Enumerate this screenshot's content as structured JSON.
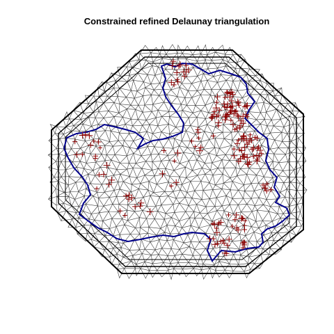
{
  "figure": {
    "title": "Constrained refined Delaunay triangulation"
  },
  "colors": {
    "background": "#ffffff",
    "mesh_edge": "#3c3c3c",
    "outer_boundary": "#000000",
    "inner_boundary": "#00008b",
    "data_points": "#8b0000"
  },
  "chart_data": {
    "type": "mesh",
    "title": "Constrained refined Delaunay triangulation",
    "elements": [
      "triangle mesh",
      "octagonal outer boundary",
      "inner region boundary",
      "observation points (+)"
    ]
  }
}
